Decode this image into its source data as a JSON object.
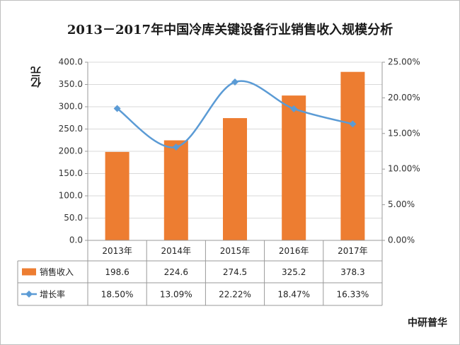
{
  "title": "2013－2017年中国冷库关键设备行业销售收入规模分析",
  "unit_label": "亿元",
  "source": "中研普华",
  "colors": {
    "bar": "#ED7D31",
    "line": "#5B9BD5",
    "grid": "#d9d9d9",
    "axis": "#999999"
  },
  "chart_data": {
    "type": "bar",
    "categories": [
      "2013年",
      "2014年",
      "2015年",
      "2016年",
      "2017年"
    ],
    "series": [
      {
        "name": "销售收入",
        "type": "bar",
        "axis": "left",
        "values": [
          198.6,
          224.6,
          274.5,
          325.2,
          378.3
        ],
        "labels": [
          "198.6",
          "224.6",
          "274.5",
          "325.2",
          "378.3"
        ]
      },
      {
        "name": "增长率",
        "type": "line",
        "axis": "right",
        "values": [
          18.5,
          13.09,
          22.22,
          18.47,
          16.33
        ],
        "labels": [
          "18.50%",
          "13.09%",
          "22.22%",
          "18.47%",
          "16.33%"
        ]
      }
    ],
    "y_left": {
      "min": 0,
      "max": 400,
      "step": 50,
      "ticks": [
        "0.0",
        "50.0",
        "100.0",
        "150.0",
        "200.0",
        "250.0",
        "300.0",
        "350.0",
        "400.0"
      ]
    },
    "y_right": {
      "min": 0,
      "max": 25,
      "step": 5,
      "ticks": [
        "0.00%",
        "5.00%",
        "10.00%",
        "15.00%",
        "20.00%",
        "25.00%"
      ]
    },
    "grid": true,
    "legend": "data-table"
  }
}
